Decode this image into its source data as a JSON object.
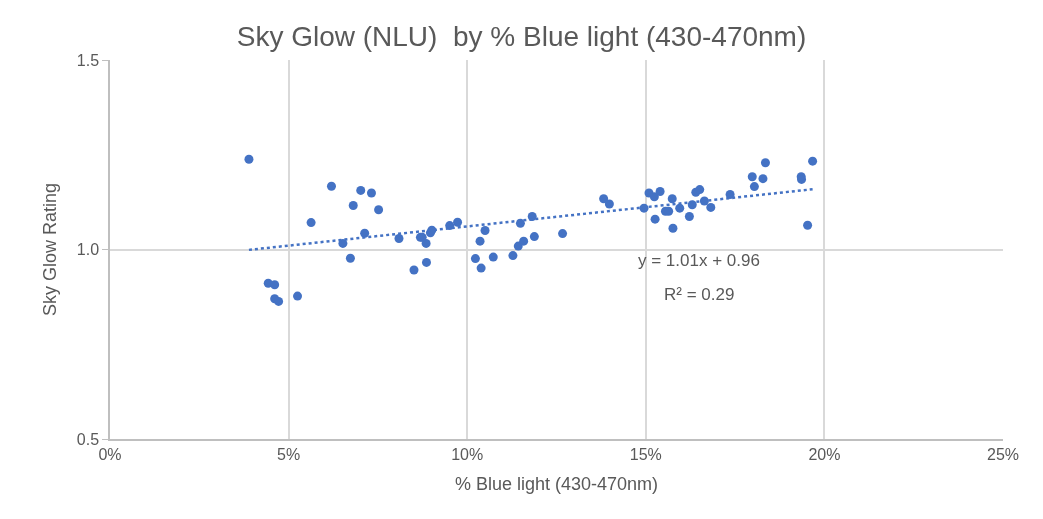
{
  "chart_data": {
    "type": "scatter",
    "title": "Sky Glow (NLU)  by % Blue light (430-470nm)",
    "xlabel": "% Blue light (430-470nm)",
    "ylabel": "Sky Glow Rating",
    "series": [
      {
        "color": "#4472c4",
        "marker": "circle",
        "x": [
          0.0389,
          0.0443,
          0.0461,
          0.0461,
          0.0472,
          0.0525,
          0.0563,
          0.062,
          0.0652,
          0.0673,
          0.0681,
          0.0702,
          0.0713,
          0.0732,
          0.0752,
          0.0809,
          0.0851,
          0.0869,
          0.0886,
          0.0885,
          0.0874,
          0.0897,
          0.0901,
          0.0951,
          0.0973,
          0.1023,
          0.1039,
          0.1036,
          0.105,
          0.1073,
          0.1128,
          0.1143,
          0.1149,
          0.1158,
          0.1182,
          0.1188,
          0.1267,
          0.1382,
          0.1398,
          0.1495,
          0.1509,
          0.1524,
          0.154,
          0.1526,
          0.1555,
          0.1564,
          0.1574,
          0.1576,
          0.1595,
          0.1622,
          0.163,
          0.164,
          0.1651,
          0.1664,
          0.1682,
          0.1736,
          0.1798,
          0.1804,
          0.1828,
          0.1835,
          0.1935,
          0.1936,
          0.1953,
          0.1967
        ],
        "values": [
          1.238,
          0.911,
          0.907,
          0.87,
          0.863,
          0.877,
          1.071,
          1.167,
          1.016,
          0.977,
          1.116,
          1.156,
          1.043,
          1.149,
          1.105,
          1.029,
          0.946,
          1.032,
          0.966,
          1.016,
          1.032,
          1.044,
          1.051,
          1.063,
          1.072,
          0.976,
          0.951,
          1.022,
          1.05,
          0.98,
          0.984,
          1.009,
          1.069,
          1.022,
          1.087,
          1.034,
          1.042,
          1.134,
          1.12,
          1.109,
          1.149,
          1.139,
          1.153,
          1.08,
          1.101,
          1.101,
          1.134,
          1.056,
          1.109,
          1.087,
          1.118,
          1.151,
          1.158,
          1.128,
          1.111,
          1.145,
          1.192,
          1.166,
          1.187,
          1.229,
          1.192,
          1.185,
          1.064,
          1.233
        ]
      },
      {
        "type": "line",
        "color": "#4472c4",
        "line_style": "dotted",
        "x": [
          0.0389,
          0.1967
        ],
        "values": [
          0.999,
          1.159
        ]
      }
    ],
    "annotations": [
      "y = 1.01x + 0.96",
      "R² = 0.29"
    ],
    "xlim": [
      0,
      0.25
    ],
    "xticks": [
      {
        "value": 0,
        "label": "0%"
      },
      {
        "value": 0.05,
        "label": "5%"
      },
      {
        "value": 0.1,
        "label": "10%"
      },
      {
        "value": 0.15,
        "label": "15%"
      },
      {
        "value": 0.2,
        "label": "20%"
      },
      {
        "value": 0.25,
        "label": "25%"
      }
    ],
    "ylim": [
      0.5,
      1.5
    ],
    "yticks": [
      {
        "value": 0.5,
        "label": "0.5"
      },
      {
        "value": 1.0,
        "label": "1.0"
      },
      {
        "value": 1.5,
        "label": "1.5"
      }
    ],
    "grid": true
  }
}
